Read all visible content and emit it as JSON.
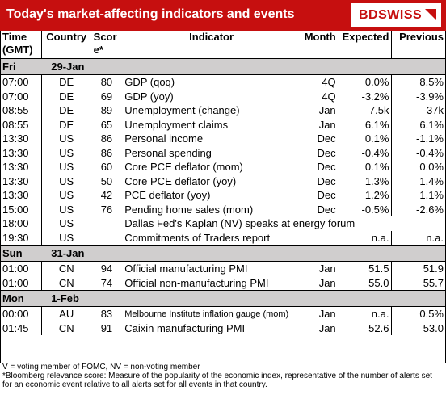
{
  "header": {
    "title": "Today's market-affecting indicators and events",
    "logo_text": "BDSWISS",
    "brand_color": "#c60f0f"
  },
  "columns": {
    "time": "Time (GMT)",
    "country": "Country",
    "score": "Score*",
    "indicator": "Indicator",
    "month": "Month",
    "expected": "Expected",
    "previous": "Previous"
  },
  "days": [
    {
      "weekday": "Fri",
      "date": "29-Jan",
      "rows": [
        {
          "time": "07:00",
          "country": "DE",
          "score": "80",
          "indicator": "GDP (qoq)",
          "month": "4Q",
          "expected": "0.0%",
          "previous": "8.5%"
        },
        {
          "time": "07:00",
          "country": "DE",
          "score": "69",
          "indicator": "GDP (yoy)",
          "month": "4Q",
          "expected": "-3.2%",
          "previous": "-3.9%"
        },
        {
          "time": "08:55",
          "country": "DE",
          "score": "89",
          "indicator": "Unemployment (change)",
          "month": "Jan",
          "expected": "7.5k",
          "previous": "-37k"
        },
        {
          "time": "08:55",
          "country": "DE",
          "score": "65",
          "indicator": "Unemployment claims",
          "month": "Jan",
          "expected": "6.1%",
          "previous": "6.1%"
        },
        {
          "time": "13:30",
          "country": "US",
          "score": "86",
          "indicator": "Personal income",
          "month": "Dec",
          "expected": "0.1%",
          "previous": "-1.1%"
        },
        {
          "time": "13:30",
          "country": "US",
          "score": "86",
          "indicator": "Personal spending",
          "month": "Dec",
          "expected": "-0.4%",
          "previous": "-0.4%"
        },
        {
          "time": "13:30",
          "country": "US",
          "score": "60",
          "indicator": "Core PCE deflator (mom)",
          "month": "Dec",
          "expected": "0.1%",
          "previous": "0.0%"
        },
        {
          "time": "13:30",
          "country": "US",
          "score": "50",
          "indicator": "Core PCE deflator (yoy)",
          "month": "Dec",
          "expected": "1.3%",
          "previous": "1.4%"
        },
        {
          "time": "13:30",
          "country": "US",
          "score": "42",
          "indicator": "PCE deflator (yoy)",
          "month": "Dec",
          "expected": "1.2%",
          "previous": "1.1%"
        },
        {
          "time": "15:00",
          "country": "US",
          "score": "76",
          "indicator": "Pending home sales (mom)",
          "month": "Dec",
          "expected": "-0.5%",
          "previous": "-2.6%"
        },
        {
          "time": "18:00",
          "country": "US",
          "score": "",
          "indicator": "Dallas Fed's Kaplan (NV) speaks at energy forum",
          "month": "",
          "expected": "",
          "previous": "",
          "span": true
        },
        {
          "time": "19:30",
          "country": "US",
          "score": "",
          "indicator": "Commitments of Traders  report",
          "month": "",
          "expected": "n.a.",
          "previous": "n.a."
        }
      ]
    },
    {
      "weekday": "Sun",
      "date": "31-Jan",
      "rows": [
        {
          "time": "01:00",
          "country": "CN",
          "score": "94",
          "indicator": "Official manufacturing PMI",
          "month": "Jan",
          "expected": "51.5",
          "previous": "51.9"
        },
        {
          "time": "01:00",
          "country": "CN",
          "score": "74",
          "indicator": "Official non-manufacturing PMI",
          "month": "Jan",
          "expected": "55.0",
          "previous": "55.7"
        }
      ]
    },
    {
      "weekday": "Mon",
      "date": "1-Feb",
      "rows": [
        {
          "time": "00:00",
          "country": "AU",
          "score": "83",
          "indicator": "Melbourne Institute inflation gauge (mom)",
          "month": "Jan",
          "expected": "n.a.",
          "previous": "0.5%",
          "small": true
        },
        {
          "time": "01:45",
          "country": "CN",
          "score": "91",
          "indicator": "Caixin manufacturing PMI",
          "month": "Jan",
          "expected": "52.6",
          "previous": "53.0"
        }
      ]
    }
  ],
  "notes": {
    "line1": "V = voting member of FOMC, NV = non-voting member",
    "line2": "*Bloomberg relevance score:  Measure of the popularity of the economic index, representative of the number of alerts set for an economic event relative to all alerts set for all events in that country."
  }
}
